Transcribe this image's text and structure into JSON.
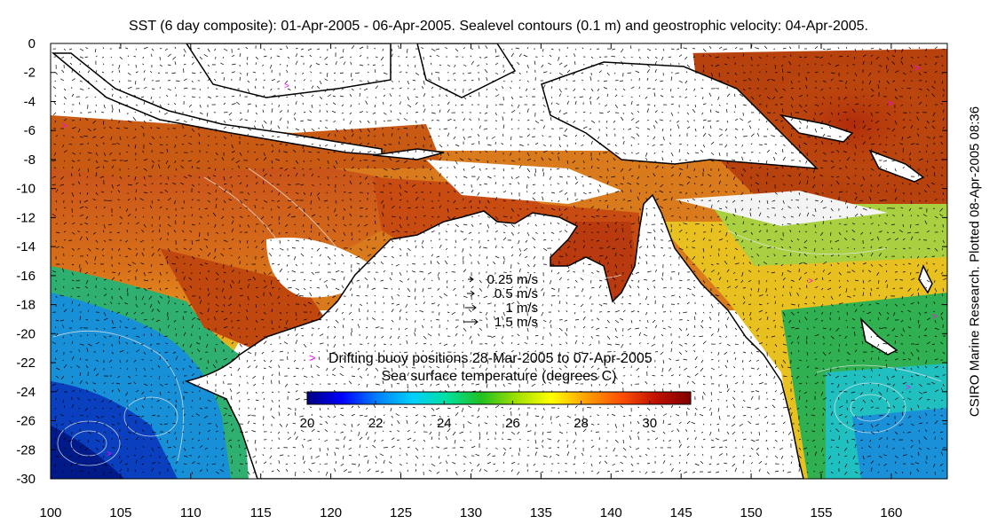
{
  "title": "SST (6 day composite): 01-Apr-2005 - 06-Apr-2005. Sealevel contours (0.1 m) and geostrophic velocity: 04-Apr-2005.",
  "side_label": "CSIRO Marine Research. Plotted 08-Apr-2005 08:36",
  "axes": {
    "x_range": [
      100,
      164
    ],
    "y_range": [
      -30,
      0
    ],
    "x_ticks": [
      100,
      105,
      110,
      115,
      120,
      125,
      130,
      135,
      140,
      145,
      150,
      155,
      160
    ],
    "y_ticks": [
      0,
      -2,
      -4,
      -6,
      -8,
      -10,
      -12,
      -14,
      -16,
      -18,
      -20,
      -22,
      -24,
      -26,
      -28,
      -30
    ]
  },
  "velocity_legend": [
    {
      "label": "0.25 m/s",
      "speed": 0.25
    },
    {
      "label": "0.5 m/s",
      "speed": 0.5
    },
    {
      "label": "1 m/s",
      "speed": 1
    },
    {
      "label": "1.5 m/s",
      "speed": 1.5
    }
  ],
  "buoy_legend": {
    "symbol": ">",
    "label": "Drifting buoy positions 28-Mar-2005 to 07-Apr-2005",
    "color": "#ff00ff"
  },
  "colorbar": {
    "title": "Sea surface temperature (degrees C)",
    "range": [
      20,
      31.2
    ],
    "ticks": [
      20,
      22,
      24,
      26,
      28,
      30
    ],
    "colors": [
      "#00007f",
      "#0000ff",
      "#007fff",
      "#00cfff",
      "#00e0a0",
      "#20c020",
      "#a0e000",
      "#ffff00",
      "#ffa000",
      "#ff5000",
      "#c01000",
      "#800000"
    ]
  },
  "colors": {
    "land": "#ffffff",
    "coast": "#000000",
    "contours": "#e8e8e8",
    "vectors": "#000000"
  }
}
